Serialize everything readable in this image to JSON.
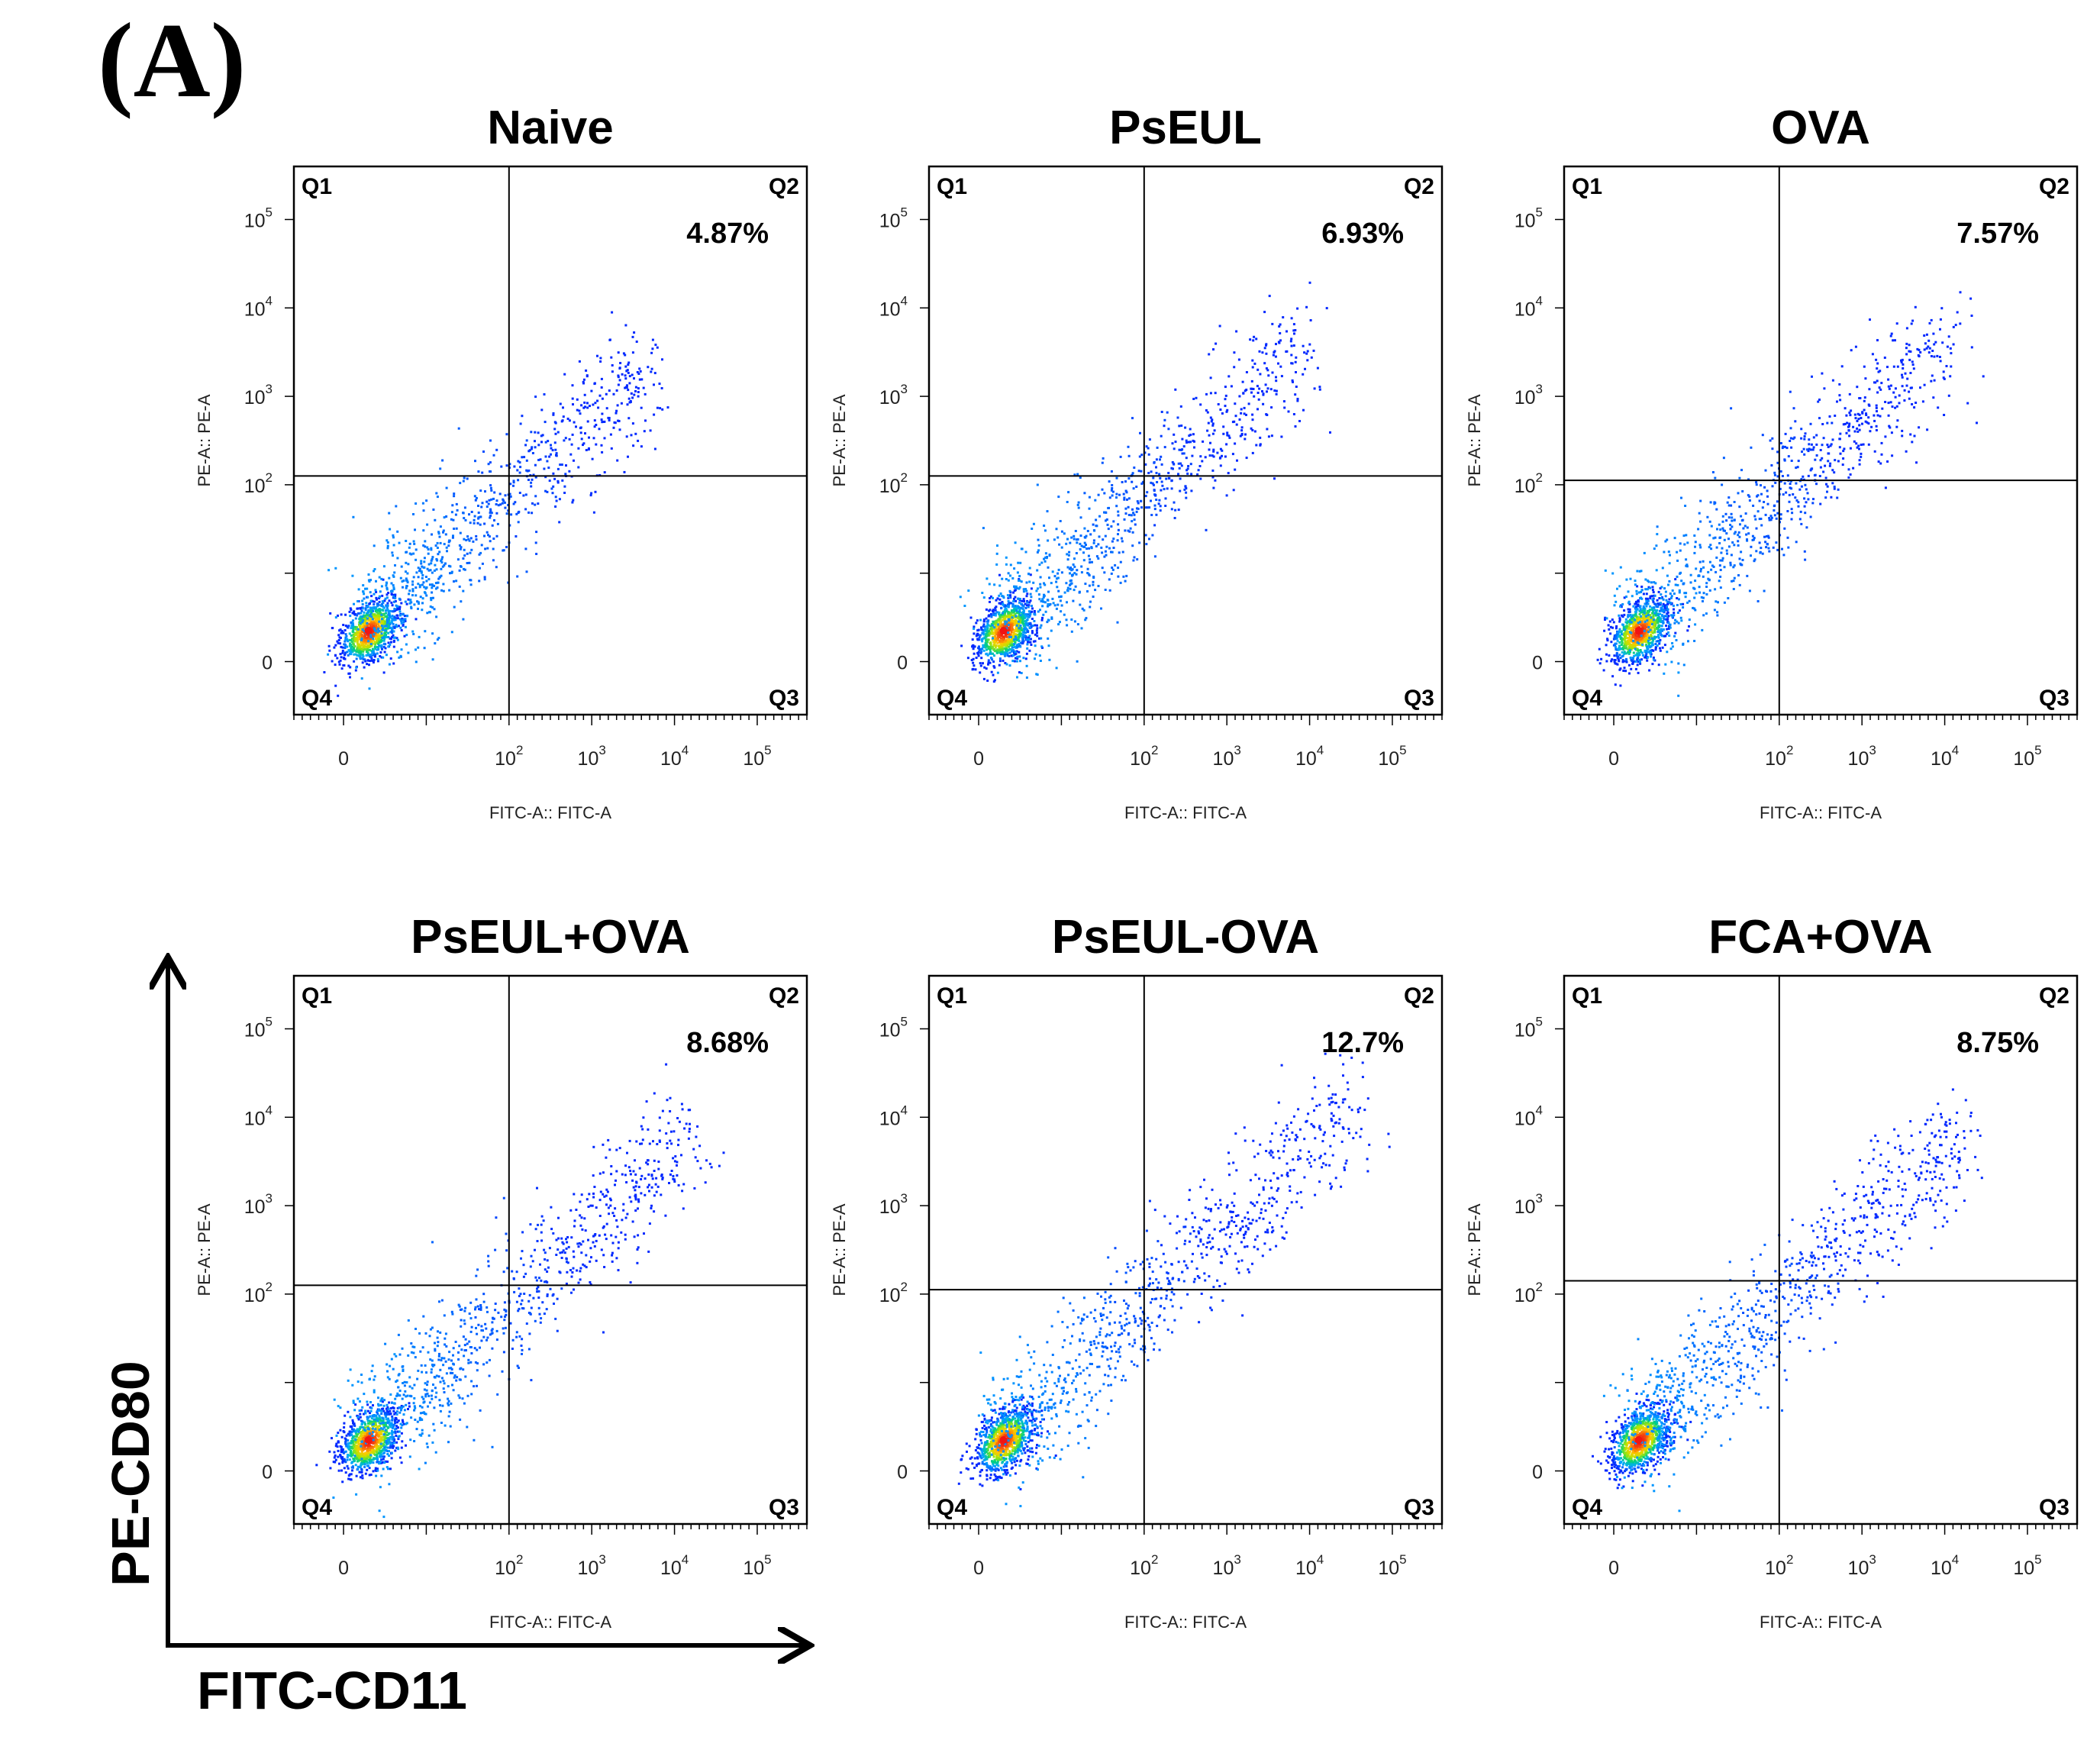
{
  "panel_label": "(A)",
  "chart_data": {
    "type": "scatter",
    "figure_title": "",
    "shared_axes": {
      "xlabel": "FITC-CD11",
      "ylabel": "PE-CD80"
    },
    "panel_axis_labels": {
      "x": "FITC-A:: FITC-A",
      "y": "PE-A:: PE-A"
    },
    "axis_ticks": [
      {
        "label": "0",
        "base": "0",
        "exp": ""
      },
      {
        "label": "10^2",
        "base": "10",
        "exp": "2"
      },
      {
        "label": "10^3",
        "base": "10",
        "exp": "3"
      },
      {
        "label": "10^4",
        "base": "10",
        "exp": "4"
      },
      {
        "label": "10^5",
        "base": "10",
        "exp": "5"
      }
    ],
    "axis_range": {
      "xlim_decades": [
        -0.6,
        5.6
      ],
      "ylim_decades": [
        -0.6,
        5.6
      ]
    },
    "quadrant_labels": [
      "Q1",
      "Q2",
      "Q3",
      "Q4"
    ],
    "panels": [
      {
        "title": "Naive",
        "q2_percent": "4.87%",
        "gate_x_decade": 2.0,
        "gate_y_decade": 2.1,
        "spread": 1.0
      },
      {
        "title": "PsEUL",
        "q2_percent": "6.93%",
        "gate_x_decade": 2.0,
        "gate_y_decade": 2.1,
        "spread": 1.08
      },
      {
        "title": "OVA",
        "q2_percent": "7.57%",
        "gate_x_decade": 2.0,
        "gate_y_decade": 2.05,
        "spread": 1.12
      },
      {
        "title": "PsEUL+OVA",
        "q2_percent": "8.68%",
        "gate_x_decade": 2.0,
        "gate_y_decade": 2.1,
        "spread": 1.15
      },
      {
        "title": "PsEUL-OVA",
        "q2_percent": "12.7%",
        "gate_x_decade": 2.0,
        "gate_y_decade": 2.05,
        "spread": 1.25
      },
      {
        "title": "FCA+OVA",
        "q2_percent": "8.75%",
        "gate_x_decade": 2.0,
        "gate_y_decade": 2.15,
        "spread": 1.15
      }
    ]
  }
}
